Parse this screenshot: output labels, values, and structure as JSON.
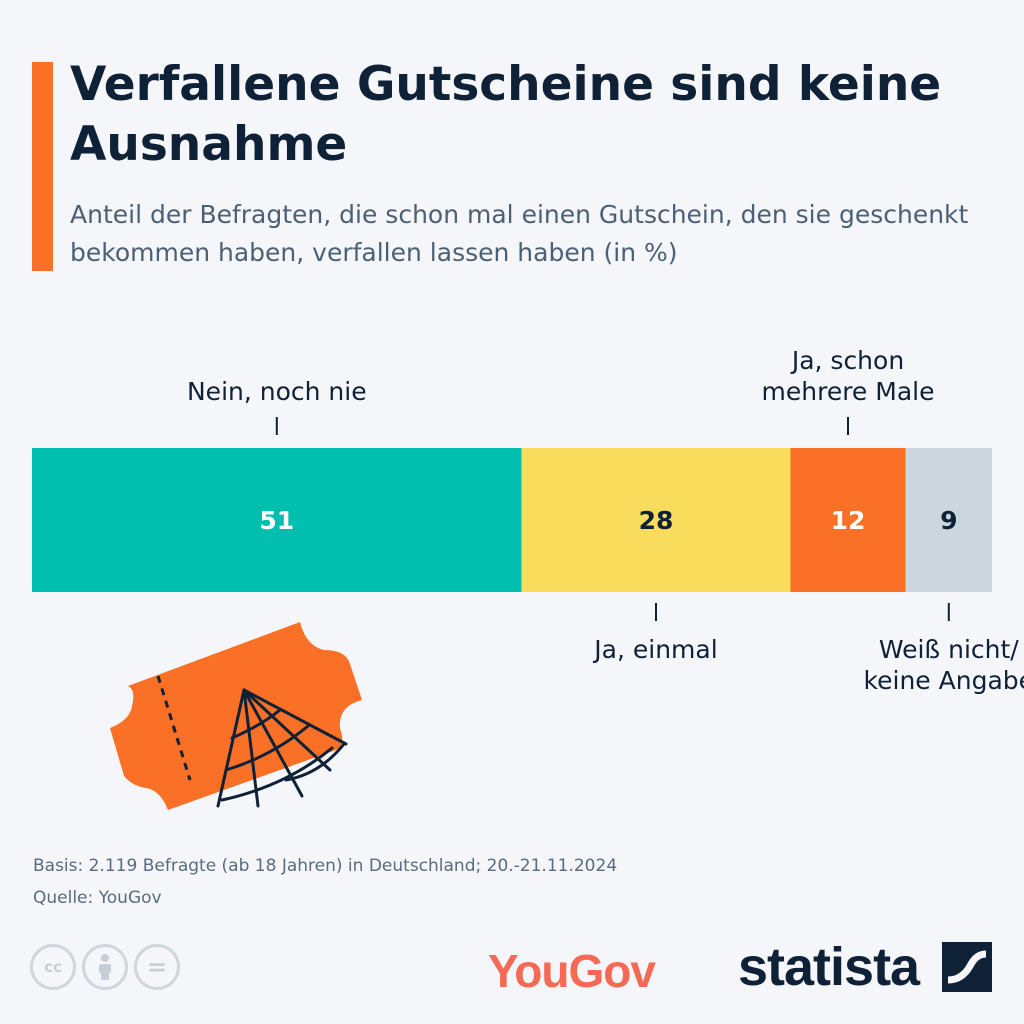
{
  "header": {
    "title": "Verfallene Gutscheine sind keine Ausnahme",
    "subtitle": "Anteil der Befragten, die schon mal einen Gutschein, den sie geschenkt bekommen haben, verfallen lassen haben (in %)"
  },
  "colors": {
    "accent": "#f97026",
    "teal": "#00bfaf",
    "yellow": "#f9dc5c",
    "orange": "#f97026",
    "grey": "#cbd6de",
    "dark": "#0f2136"
  },
  "chart_data": {
    "type": "bar",
    "orientation": "horizontal-stacked-100",
    "unit": "%",
    "segments": [
      {
        "label": "Nein, noch nie",
        "value": 51,
        "color": "#00bfaf",
        "value_text_color": "#ffffff",
        "label_position": "top"
      },
      {
        "label": "Ja, einmal",
        "value": 28,
        "color": "#f9dc5c",
        "value_text_color": "#0f2136",
        "label_position": "bottom"
      },
      {
        "label": "Ja, schon mehrere Male",
        "value": 12,
        "color": "#f97026",
        "value_text_color": "#ffffff",
        "label_position": "top"
      },
      {
        "label": "Weiß nicht/ keine Angabe",
        "value": 9,
        "color": "#cbd6de",
        "value_text_color": "#0f2136",
        "label_position": "bottom"
      }
    ],
    "total": 100
  },
  "illustration": {
    "icon": "ticket-with-cobweb-icon"
  },
  "footer": {
    "basis": "Basis: 2.119 Befragte (ab 18 Jahren) in Deutschland; 20.-21.11.2024",
    "source": "Quelle: YouGov",
    "license_icons": [
      "cc-icon",
      "by-icon",
      "nd-icon"
    ],
    "license_cc_text": "cc",
    "license_nd_text": "=",
    "yougov_logo": "YouGov",
    "statista_logo": "statista"
  }
}
